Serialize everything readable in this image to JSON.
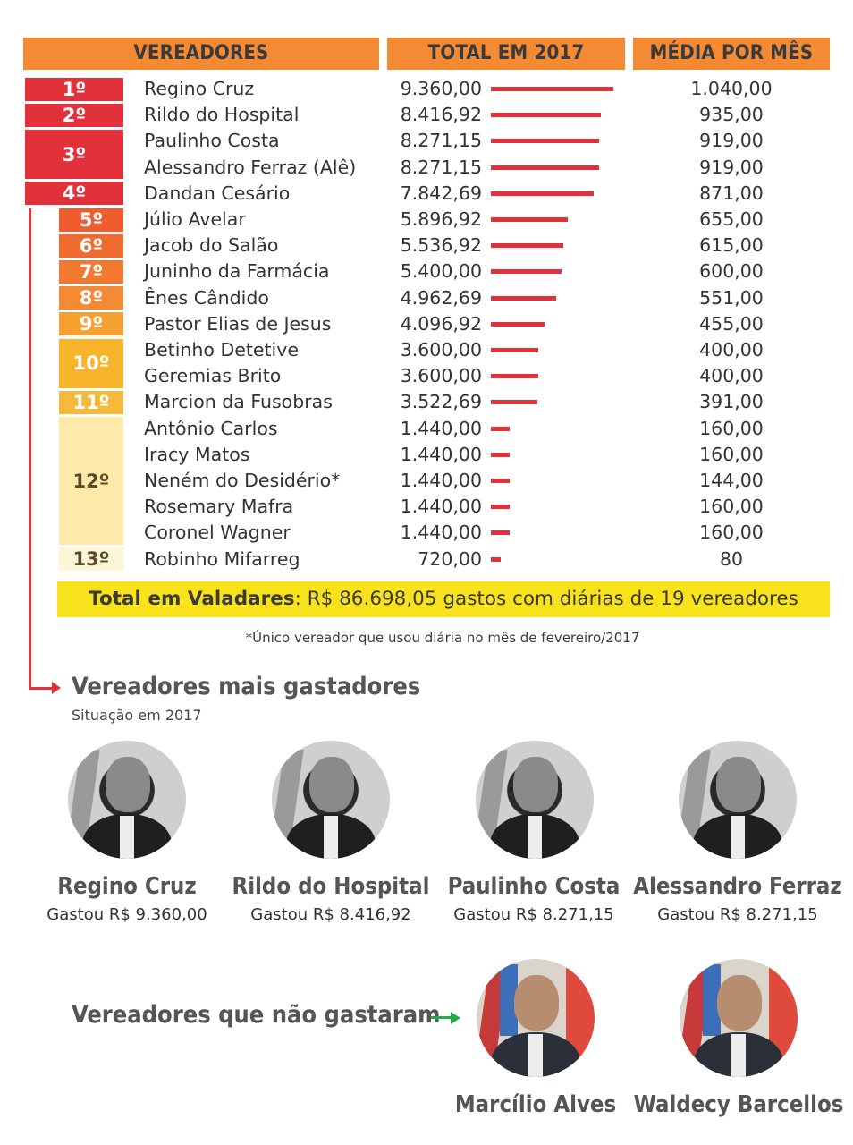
{
  "header": {
    "col_vereadores": "VEREADORES",
    "col_total": "TOTAL EM 2017",
    "col_media": "MÉDIA POR MÊS"
  },
  "colors": {
    "header_bg": "#f58a34",
    "bar": "#e2313a",
    "banner": "#f7e21b",
    "arrow_green": "#27a84e"
  },
  "chart_data": {
    "type": "bar",
    "orientation": "horizontal",
    "ranks": [
      {
        "label": "1º",
        "rows": 1,
        "color": "#e2313a"
      },
      {
        "label": "2º",
        "rows": 1,
        "color": "#e2313a"
      },
      {
        "label": "3º",
        "rows": 2,
        "color": "#e2313a"
      },
      {
        "label": "4º",
        "rows": 1,
        "color": "#e2313a"
      },
      {
        "label": "5º",
        "rows": 1,
        "color": "#ef5d2e"
      },
      {
        "label": "6º",
        "rows": 1,
        "color": "#ef6a2f"
      },
      {
        "label": "7º",
        "rows": 1,
        "color": "#f27a30"
      },
      {
        "label": "8º",
        "rows": 1,
        "color": "#f58a34"
      },
      {
        "label": "9º",
        "rows": 1,
        "color": "#f5a030"
      },
      {
        "label": "10º",
        "rows": 2,
        "color": "#f8b52c"
      },
      {
        "label": "11º",
        "rows": 1,
        "color": "#f7b93a"
      },
      {
        "label": "12º",
        "rows": 5,
        "color": "#fde9a8"
      },
      {
        "label": "13º",
        "rows": 1,
        "color": "#fdf6d6"
      }
    ],
    "rows": [
      {
        "name": "Regino Cruz",
        "total": 9360.0,
        "total_label": "9.360,00",
        "media": "1.040,00"
      },
      {
        "name": "Rildo do Hospital",
        "total": 8416.92,
        "total_label": "8.416,92",
        "media": "935,00"
      },
      {
        "name": "Paulinho Costa",
        "total": 8271.15,
        "total_label": "8.271,15",
        "media": "919,00"
      },
      {
        "name": "Alessandro Ferraz (Alê)",
        "total": 8271.15,
        "total_label": "8.271,15",
        "media": "919,00"
      },
      {
        "name": "Dandan Cesário",
        "total": 7842.69,
        "total_label": "7.842,69",
        "media": "871,00"
      },
      {
        "name": "Júlio Avelar",
        "total": 5896.92,
        "total_label": "5.896,92",
        "media": "655,00"
      },
      {
        "name": "Jacob do Salão",
        "total": 5536.92,
        "total_label": "5.536,92",
        "media": "615,00"
      },
      {
        "name": "Juninho da Farmácia",
        "total": 5400.0,
        "total_label": "5.400,00",
        "media": "600,00"
      },
      {
        "name": "Ênes Cândido",
        "total": 4962.69,
        "total_label": "4.962,69",
        "media": "551,00"
      },
      {
        "name": "Pastor Elias de Jesus",
        "total": 4096.92,
        "total_label": "4.096,92",
        "media": "455,00"
      },
      {
        "name": "Betinho Detetive",
        "total": 3600.0,
        "total_label": "3.600,00",
        "media": "400,00"
      },
      {
        "name": "Geremias Brito",
        "total": 3600.0,
        "total_label": "3.600,00",
        "media": "400,00"
      },
      {
        "name": "Marcion da Fusobras",
        "total": 3522.69,
        "total_label": "3.522,69",
        "media": "391,00"
      },
      {
        "name": "Antônio Carlos",
        "total": 1440.0,
        "total_label": "1.440,00",
        "media": "160,00"
      },
      {
        "name": "Iracy Matos",
        "total": 1440.0,
        "total_label": "1.440,00",
        "media": "160,00"
      },
      {
        "name": "Neném do Desidério*",
        "total": 1440.0,
        "total_label": "1.440,00",
        "media": "144,00"
      },
      {
        "name": "Rosemary Mafra",
        "total": 1440.0,
        "total_label": "1.440,00",
        "media": "160,00"
      },
      {
        "name": "Coronel Wagner",
        "total": 1440.0,
        "total_label": "1.440,00",
        "media": "160,00"
      },
      {
        "name": "Robinho Mifarreg",
        "total": 720.0,
        "total_label": "720,00",
        "media": "80"
      }
    ],
    "xlim": [
      0,
      9360
    ]
  },
  "summary": {
    "label": "Total em Valadares",
    "text": ": R$ 86.698,05 gastos com diárias de 19 vereadores"
  },
  "footnote": "*Único vereador que usou diária no mês de fevereiro/2017",
  "top_spenders": {
    "title": "Vereadores mais gastadores",
    "subtitle": "Situação em 2017",
    "people": [
      {
        "name": "Regino Cruz",
        "spent": "Gastou R$ 9.360,00"
      },
      {
        "name": "Rildo do Hospital",
        "spent": "Gastou R$ 8.416,92"
      },
      {
        "name": "Paulinho Costa",
        "spent": "Gastou R$ 8.271,15"
      },
      {
        "name": "Alessandro Ferraz",
        "spent": "Gastou R$ 8.271,15"
      }
    ]
  },
  "non_spenders": {
    "title": "Vereadores que não gastaram",
    "people": [
      {
        "name": "Marcílio Alves"
      },
      {
        "name": "Waldecy Barcellos"
      }
    ]
  }
}
